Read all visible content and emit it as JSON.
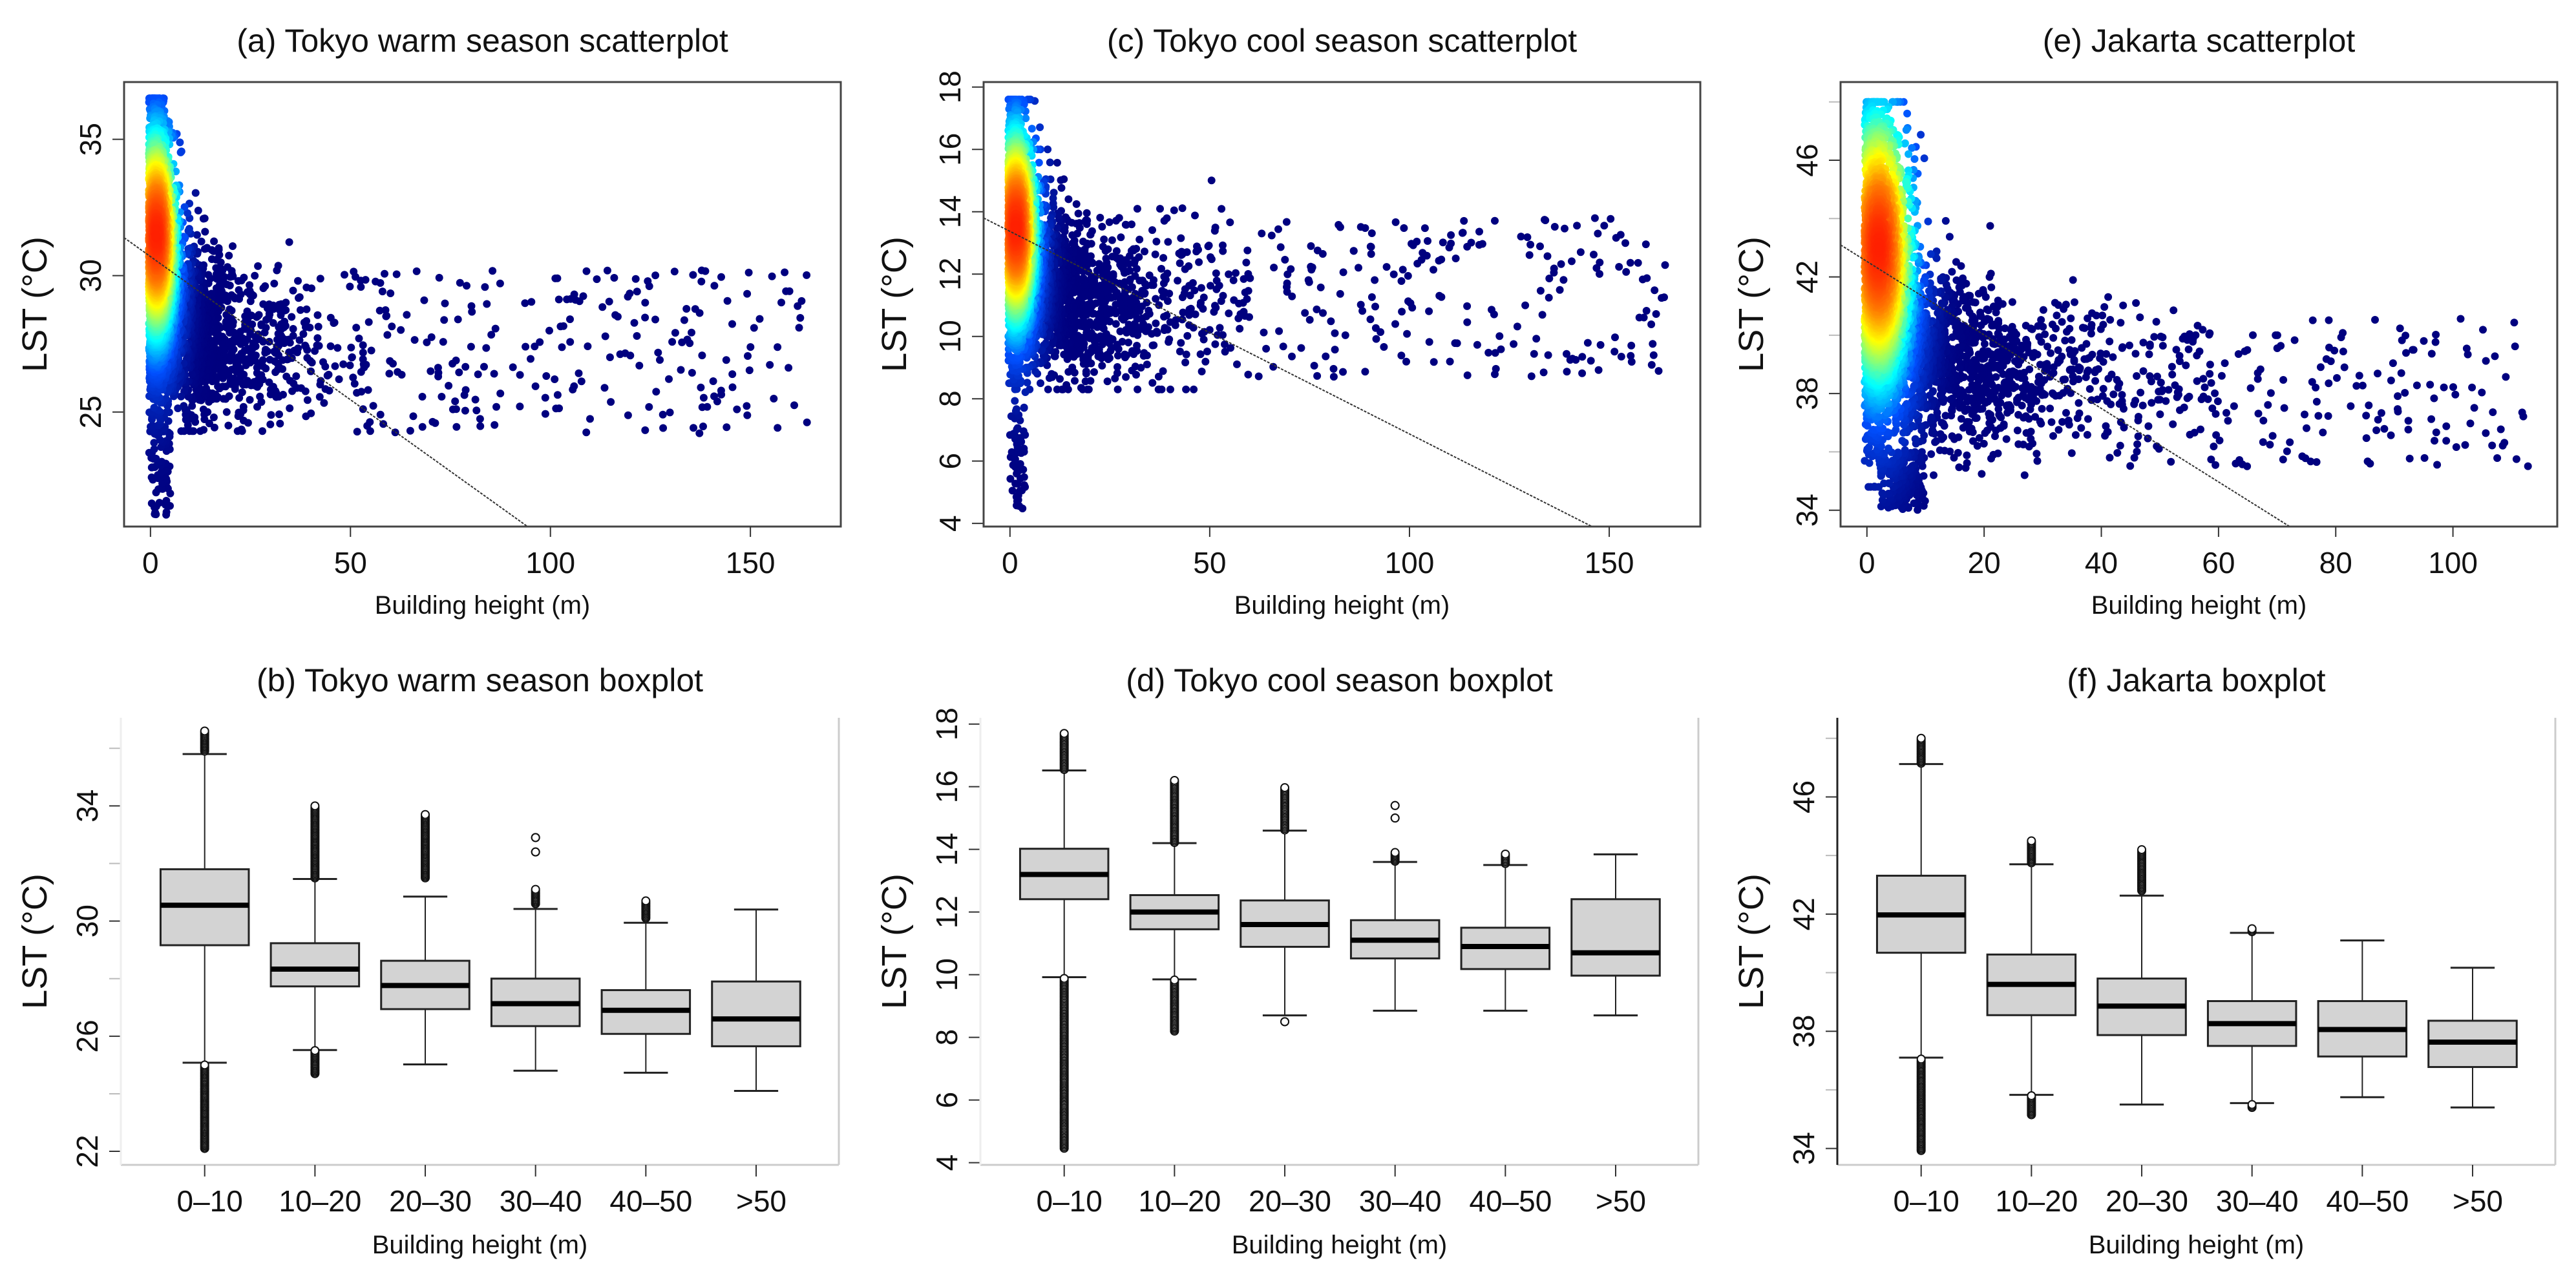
{
  "figure": {
    "colormap": [
      [
        "0",
        "#00007F"
      ],
      [
        "0.25",
        "#0050FF"
      ],
      [
        "0.45",
        "#00FFFF"
      ],
      [
        "0.7",
        "#FFFF00"
      ],
      [
        "0.85",
        "#FF8000"
      ],
      [
        "1",
        "#FF2000"
      ]
    ],
    "box_fill": "#D3D3D3",
    "regression_color": "#333333"
  },
  "chart_data": [
    {
      "id": "a",
      "type": "scatter",
      "title": "(a) Tokyo warm season scatterplot",
      "xlabel": "Building height (m)",
      "ylabel": "LST (°C)",
      "xlim": [
        -6.6,
        172.6
      ],
      "ylim": [
        20.8,
        37.1
      ],
      "xticks": [
        0,
        50,
        100,
        150
      ],
      "yticks": [
        25,
        30,
        35
      ],
      "yticks_minor": [],
      "regression": {
        "slope": -0.105,
        "intercept": 30.7
      },
      "point_cloud": {
        "core": {
          "n": 2300,
          "x_sd": 2.6,
          "y_mean": 31.0,
          "y_sd": 2.5,
          "y_clip": [
            21.0,
            36.5
          ]
        },
        "mid": {
          "n": 1900,
          "x_mean": 12,
          "y_mean": 27.2,
          "y_sd": 1.4,
          "y_clip": [
            24.3,
            34.0
          ]
        },
        "far": {
          "n": 230,
          "x_range": [
            50,
            165
          ],
          "y_range": [
            24.1,
            30.2
          ]
        },
        "tail": {
          "n": 60,
          "x_range": [
            0,
            5
          ],
          "y_range": [
            21.2,
            25.0
          ]
        }
      },
      "density_peak": {
        "x": 1.5,
        "y": 31.5,
        "x_sd": 4.0,
        "y_sd": 3.0
      }
    },
    {
      "id": "c",
      "type": "scatter",
      "title": "(c) Tokyo cool season scatterplot",
      "xlabel": "Building height (m)",
      "ylabel": "LST (°C)",
      "xlim": [
        -6.6,
        172.8
      ],
      "ylim": [
        3.9,
        18.16
      ],
      "xticks": [
        0,
        50,
        100,
        150
      ],
      "yticks": [
        4,
        6,
        8,
        10,
        12,
        14,
        16,
        18
      ],
      "yticks_minor": [],
      "regression": {
        "slope": -0.065,
        "intercept": 13.37
      },
      "point_cloud": {
        "core": {
          "n": 2300,
          "x_sd": 2.6,
          "y_mean": 13.3,
          "y_sd": 1.8,
          "y_clip": [
            8.5,
            17.6
          ]
        },
        "mid": {
          "n": 1900,
          "x_mean": 14,
          "y_mean": 11.0,
          "y_sd": 1.3,
          "y_clip": [
            8.3,
            16.0
          ]
        },
        "far": {
          "n": 230,
          "x_range": [
            50,
            165
          ],
          "y_range": [
            8.7,
            13.8
          ]
        },
        "tail": {
          "n": 60,
          "x_range": [
            0,
            4
          ],
          "y_range": [
            4.4,
            8.5
          ]
        }
      },
      "density_peak": {
        "x": 1.5,
        "y": 13.5,
        "x_sd": 4.0,
        "y_sd": 2.5
      }
    },
    {
      "id": "e",
      "type": "scatter",
      "title": "(e) Jakarta scatterplot",
      "xlabel": "Building height (m)",
      "ylabel": "LST (°C)",
      "xlim": [
        -4.5,
        117.8
      ],
      "ylim": [
        33.44,
        48.68
      ],
      "xticks": [
        0,
        20,
        40,
        60,
        80,
        100
      ],
      "yticks": [
        34,
        38,
        42,
        46
      ],
      "yticks_minor": [
        36,
        40,
        44,
        48
      ],
      "regression": {
        "slope": -0.126,
        "intercept": 42.53
      },
      "point_cloud": {
        "core": {
          "n": 2400,
          "x_sd": 3.4,
          "y_mean": 42.3,
          "y_sd": 2.6,
          "y_clip": [
            34.8,
            48.0
          ]
        },
        "mid": {
          "n": 2000,
          "x_mean": 13,
          "y_mean": 38.6,
          "y_sd": 1.3,
          "y_clip": [
            35.2,
            45.0
          ]
        },
        "far": {
          "n": 200,
          "x_range": [
            40,
            113
          ],
          "y_range": [
            35.5,
            40.6
          ]
        },
        "tail": {
          "n": 150,
          "x_range": [
            2,
            10
          ],
          "y_range": [
            34.0,
            36.0
          ]
        }
      },
      "density_peak": {
        "x": 2.0,
        "y": 43.0,
        "x_sd": 4.5,
        "y_sd": 3.7
      }
    },
    {
      "id": "b",
      "type": "box",
      "title": "(b) Tokyo warm season boxplot",
      "xlabel": "Building height (m)",
      "ylabel": "LST (°C)",
      "ylim": [
        21.53,
        37.06
      ],
      "yticks": [
        22,
        26,
        30,
        34
      ],
      "yticks_minor": [
        24,
        28,
        32,
        36
      ],
      "categories": [
        "0–10",
        "10–20",
        "20–30",
        "30–40",
        "40–50",
        ">50"
      ],
      "boxes": [
        {
          "whisker_low": 25.08,
          "q1": 29.16,
          "median": 30.55,
          "q3": 31.8,
          "whisker_high": 35.8,
          "outliers": [
            [
              35.9,
              36.6
            ],
            [
              22.1,
              25.0
            ]
          ]
        },
        {
          "whisker_low": 25.52,
          "q1": 27.73,
          "median": 28.33,
          "q3": 29.23,
          "whisker_high": 31.46,
          "outliers": [
            [
              31.5,
              34.0
            ],
            [
              24.7,
              25.5
            ]
          ]
        },
        {
          "whisker_low": 25.02,
          "q1": 26.94,
          "median": 27.76,
          "q3": 28.62,
          "whisker_high": 30.85,
          "outliers": [
            [
              31.5,
              33.7
            ]
          ]
        },
        {
          "whisker_low": 24.8,
          "q1": 26.35,
          "median": 27.13,
          "q3": 28.0,
          "whisker_high": 30.42,
          "outliers": [
            [
              30.6,
              31.1
            ],
            [
              32.4,
              32.4
            ],
            [
              32.9,
              32.9
            ]
          ]
        },
        {
          "whisker_low": 24.73,
          "q1": 26.08,
          "median": 26.9,
          "q3": 27.6,
          "whisker_high": 29.94,
          "outliers": [
            [
              30.1,
              30.7
            ]
          ]
        },
        {
          "whisker_low": 24.1,
          "q1": 25.65,
          "median": 26.6,
          "q3": 27.9,
          "whisker_high": 30.4,
          "outliers": []
        }
      ]
    },
    {
      "id": "d",
      "type": "box",
      "title": "(d) Tokyo cool season boxplot",
      "xlabel": "Building height (m)",
      "ylabel": "LST (°C)",
      "ylim": [
        3.93,
        18.2
      ],
      "yticks": [
        4,
        6,
        8,
        10,
        12,
        14,
        16,
        18
      ],
      "yticks_minor": [],
      "categories": [
        "0–10",
        "10–20",
        "20–30",
        "30–40",
        "40–50",
        ">50"
      ],
      "boxes": [
        {
          "whisker_low": 9.92,
          "q1": 12.41,
          "median": 13.2,
          "q3": 14.02,
          "whisker_high": 16.52,
          "outliers": [
            [
              16.55,
              17.7
            ],
            [
              4.46,
              9.88
            ]
          ]
        },
        {
          "whisker_low": 9.85,
          "q1": 11.45,
          "median": 12.0,
          "q3": 12.54,
          "whisker_high": 14.2,
          "outliers": [
            [
              14.22,
              16.2
            ],
            [
              8.2,
              9.83
            ]
          ]
        },
        {
          "whisker_low": 8.7,
          "q1": 10.89,
          "median": 11.6,
          "q3": 12.37,
          "whisker_high": 14.6,
          "outliers": [
            [
              14.62,
              15.97
            ],
            [
              8.5,
              8.5
            ]
          ]
        },
        {
          "whisker_low": 8.85,
          "q1": 10.52,
          "median": 11.1,
          "q3": 11.74,
          "whisker_high": 13.6,
          "outliers": [
            [
              13.62,
              13.9
            ],
            [
              15.0,
              15.0
            ],
            [
              15.4,
              15.4
            ]
          ]
        },
        {
          "whisker_low": 8.85,
          "q1": 10.18,
          "median": 10.9,
          "q3": 11.5,
          "whisker_high": 13.5,
          "outliers": [
            [
              13.55,
              13.85
            ]
          ]
        },
        {
          "whisker_low": 8.7,
          "q1": 9.97,
          "median": 10.7,
          "q3": 12.41,
          "whisker_high": 13.84,
          "outliers": []
        }
      ]
    },
    {
      "id": "f",
      "type": "box",
      "title": "(f) Jakarta boxplot",
      "xlabel": "Building height (m)",
      "ylabel": "LST (°C)",
      "ylim": [
        33.44,
        48.7
      ],
      "yticks": [
        34,
        38,
        42,
        46
      ],
      "yticks_minor": [
        36,
        40,
        44,
        48
      ],
      "categories": [
        "0–10",
        "10–20",
        "20–30",
        "30–40",
        "40–50",
        ">50"
      ],
      "boxes": [
        {
          "whisker_low": 37.1,
          "q1": 40.68,
          "median": 41.97,
          "q3": 43.31,
          "whisker_high": 47.12,
          "outliers": [
            [
              47.15,
              48.0
            ],
            [
              33.93,
              37.05
            ]
          ]
        },
        {
          "whisker_low": 35.83,
          "q1": 38.55,
          "median": 39.6,
          "q3": 40.62,
          "whisker_high": 43.7,
          "outliers": [
            [
              43.75,
              44.5
            ],
            [
              35.15,
              35.8
            ]
          ]
        },
        {
          "whisker_low": 35.5,
          "q1": 37.87,
          "median": 38.86,
          "q3": 39.8,
          "whisker_high": 42.63,
          "outliers": [
            [
              42.8,
              44.2
            ]
          ]
        },
        {
          "whisker_low": 35.55,
          "q1": 37.5,
          "median": 38.26,
          "q3": 39.03,
          "whisker_high": 41.36,
          "outliers": [
            [
              41.4,
              41.5
            ],
            [
              35.4,
              35.5
            ]
          ]
        },
        {
          "whisker_low": 35.75,
          "q1": 37.14,
          "median": 38.06,
          "q3": 39.03,
          "whisker_high": 41.1,
          "outliers": []
        },
        {
          "whisker_low": 35.4,
          "q1": 36.78,
          "median": 37.63,
          "q3": 38.36,
          "whisker_high": 40.17,
          "outliers": []
        }
      ]
    }
  ]
}
